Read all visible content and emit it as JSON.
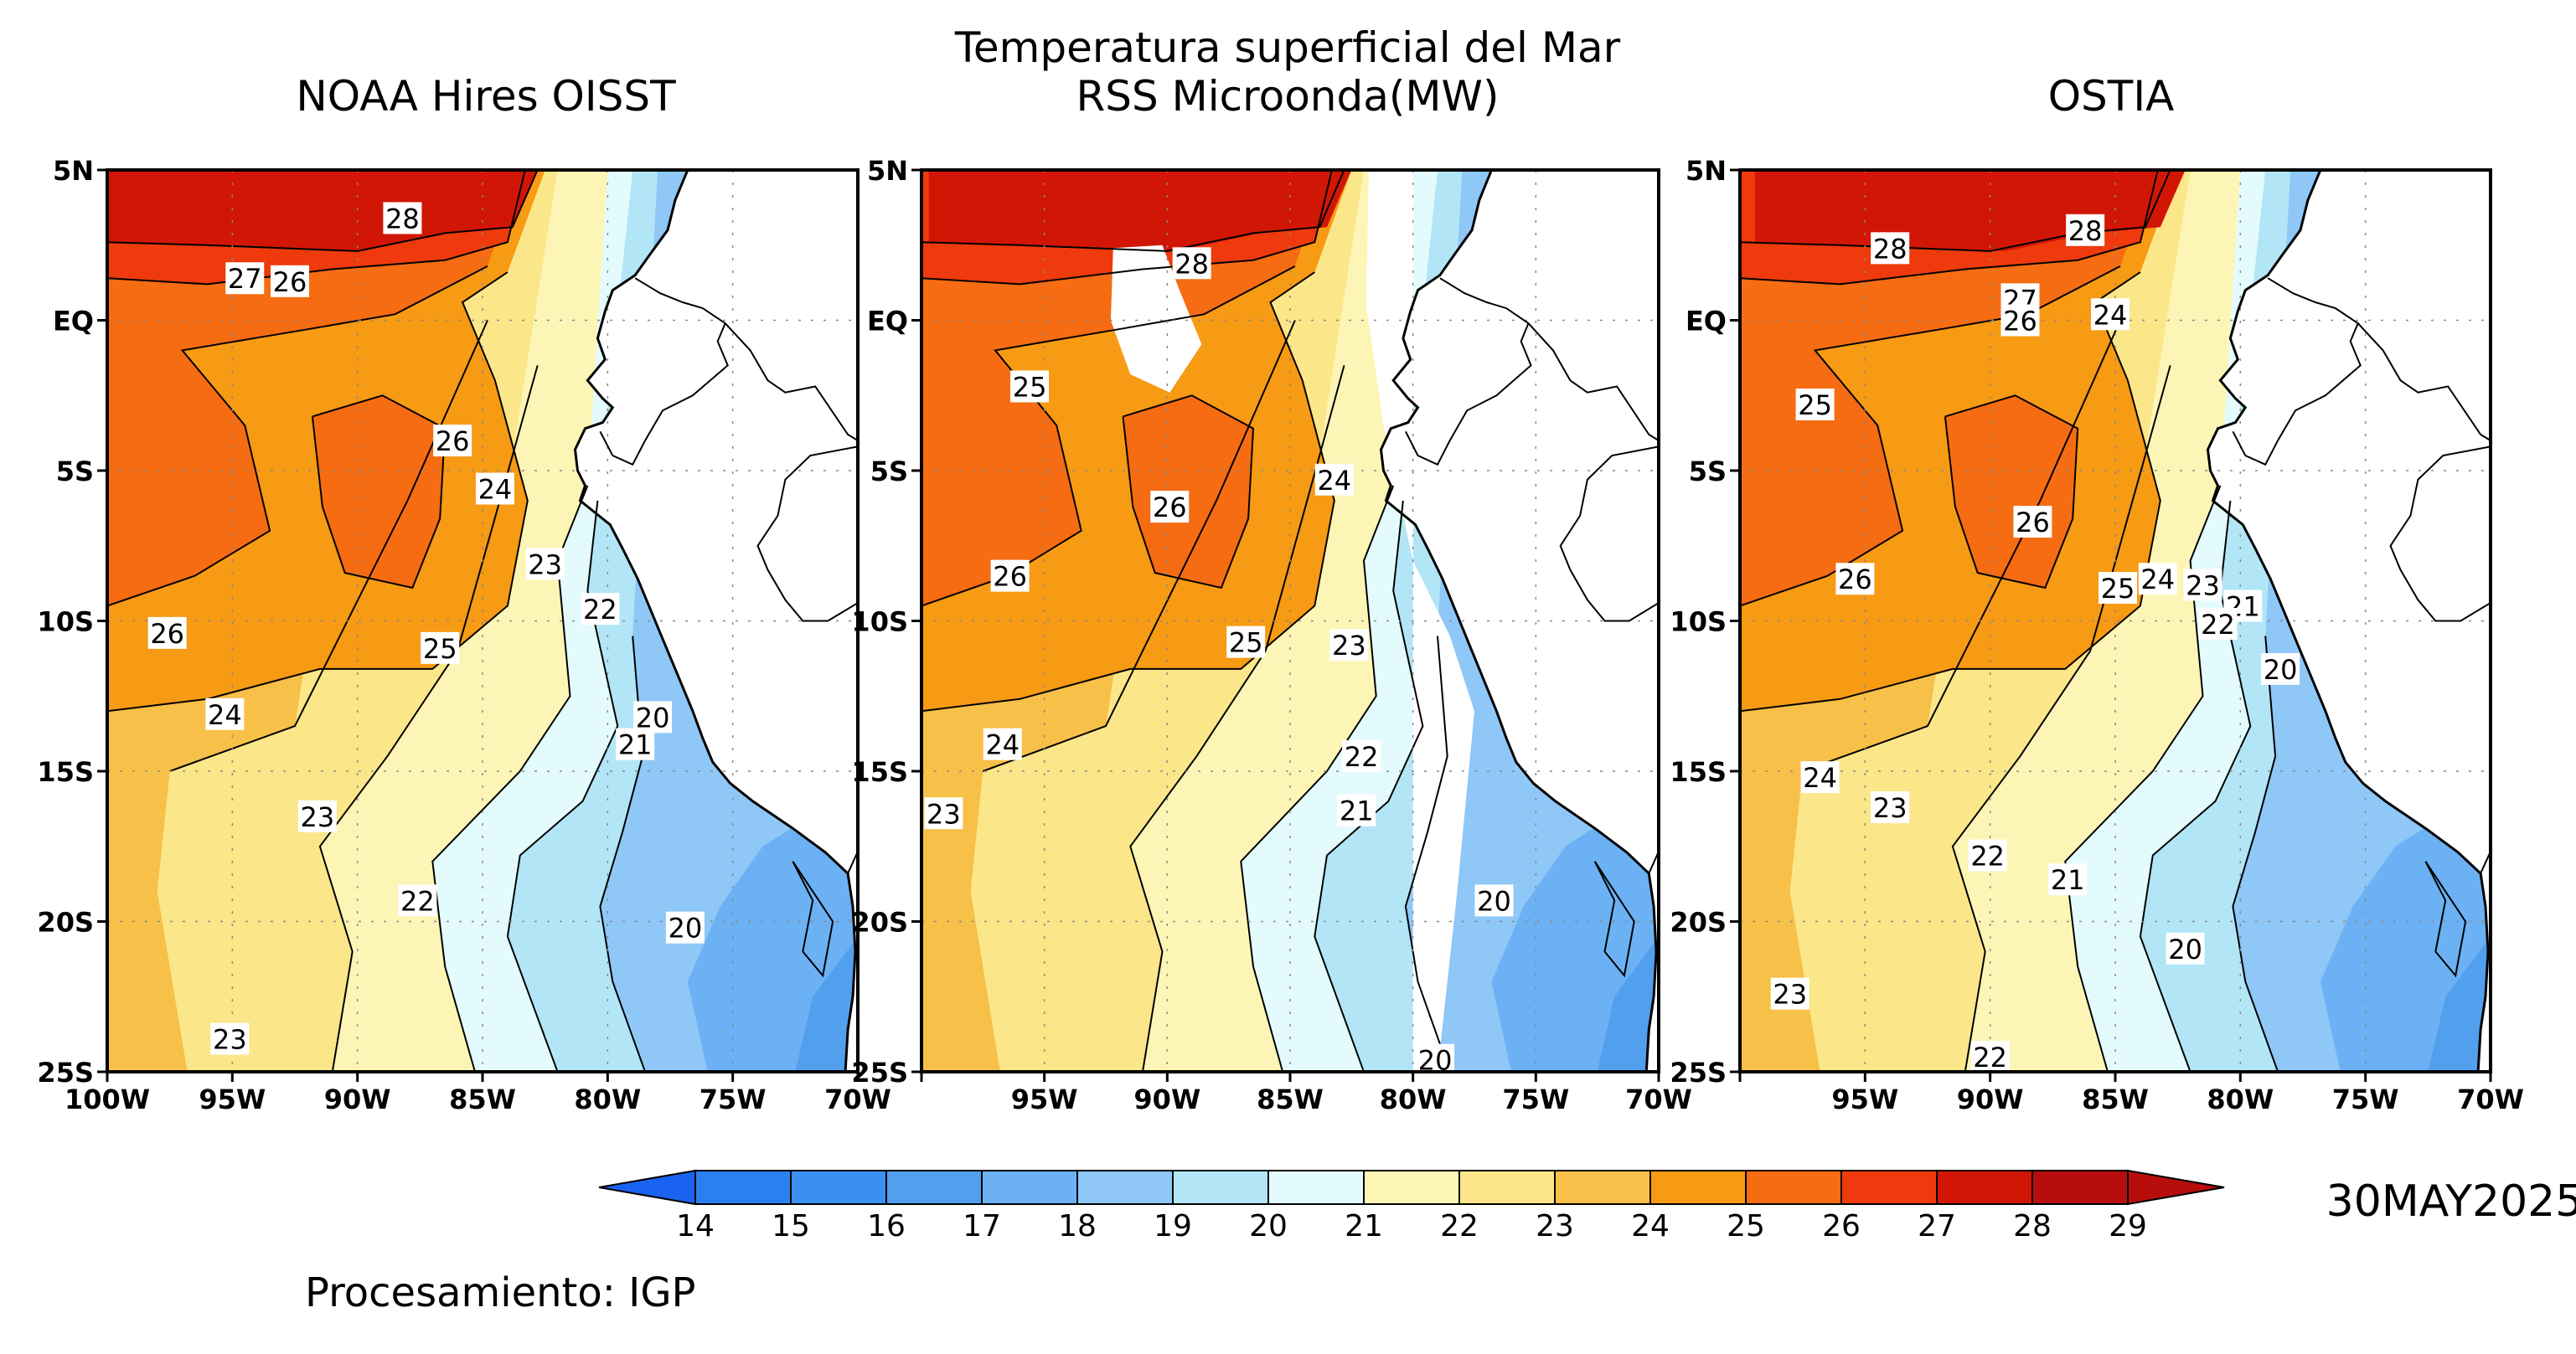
{
  "figure": {
    "title_line1": "Temperatura superficial del Mar",
    "date": "30MAY2025",
    "credit": "Procesamiento: IGP"
  },
  "panels": [
    {
      "id": "oisst",
      "title": "NOAA Hires OISST",
      "labels": [
        {
          "text": "28",
          "lon": -88.2,
          "lat": 3.4
        },
        {
          "text": "27",
          "lon": -94.5,
          "lat": 1.4
        },
        {
          "text": "26",
          "lon": -92.7,
          "lat": 1.3
        },
        {
          "text": "26",
          "lon": -86.2,
          "lat": -4.0
        },
        {
          "text": "24",
          "lon": -84.5,
          "lat": -5.6
        },
        {
          "text": "23",
          "lon": -82.5,
          "lat": -8.1
        },
        {
          "text": "22",
          "lon": -80.3,
          "lat": -9.6
        },
        {
          "text": "26",
          "lon": -97.6,
          "lat": -10.4
        },
        {
          "text": "25",
          "lon": -86.7,
          "lat": -10.9
        },
        {
          "text": "24",
          "lon": -95.3,
          "lat": -13.1
        },
        {
          "text": "20",
          "lon": -78.2,
          "lat": -13.2
        },
        {
          "text": "21",
          "lon": -78.9,
          "lat": -14.1
        },
        {
          "text": "23",
          "lon": -91.6,
          "lat": -16.5
        },
        {
          "text": "22",
          "lon": -87.6,
          "lat": -19.3
        },
        {
          "text": "20",
          "lon": -76.9,
          "lat": -20.2
        },
        {
          "text": "23",
          "lon": -95.1,
          "lat": -23.9
        }
      ]
    },
    {
      "id": "rss",
      "title": "RSS Microonda(MW)",
      "labels": [
        {
          "text": "28",
          "lon": -89.0,
          "lat": 1.9
        },
        {
          "text": "25",
          "lon": -95.6,
          "lat": -2.2
        },
        {
          "text": "24",
          "lon": -83.2,
          "lat": -5.3
        },
        {
          "text": "26",
          "lon": -89.9,
          "lat": -6.2
        },
        {
          "text": "26",
          "lon": -96.4,
          "lat": -8.5
        },
        {
          "text": "25",
          "lon": -86.8,
          "lat": -10.7
        },
        {
          "text": "23",
          "lon": -82.6,
          "lat": -10.8
        },
        {
          "text": "24",
          "lon": -96.7,
          "lat": -14.1
        },
        {
          "text": "22",
          "lon": -82.1,
          "lat": -14.5
        },
        {
          "text": "23",
          "lon": -99.1,
          "lat": -16.4
        },
        {
          "text": "21",
          "lon": -82.3,
          "lat": -16.3
        },
        {
          "text": "20",
          "lon": -76.7,
          "lat": -19.3
        },
        {
          "text": "20",
          "lon": -79.1,
          "lat": -24.6
        }
      ]
    },
    {
      "id": "ostia",
      "title": "OSTIA",
      "labels": [
        {
          "text": "28",
          "lon": -94.0,
          "lat": 2.4
        },
        {
          "text": "28",
          "lon": -86.2,
          "lat": 3.0
        },
        {
          "text": "27",
          "lon": -88.8,
          "lat": 0.7
        },
        {
          "text": "26",
          "lon": -88.8,
          "lat": 0.0
        },
        {
          "text": "24",
          "lon": -85.2,
          "lat": 0.2
        },
        {
          "text": "25",
          "lon": -97.0,
          "lat": -2.8
        },
        {
          "text": "26",
          "lon": -88.3,
          "lat": -6.7
        },
        {
          "text": "26",
          "lon": -95.4,
          "lat": -8.6
        },
        {
          "text": "25",
          "lon": -84.9,
          "lat": -8.9
        },
        {
          "text": "24",
          "lon": -83.3,
          "lat": -8.6
        },
        {
          "text": "23",
          "lon": -81.5,
          "lat": -8.8
        },
        {
          "text": "21",
          "lon": -79.9,
          "lat": -9.5
        },
        {
          "text": "22",
          "lon": -80.9,
          "lat": -10.1
        },
        {
          "text": "20",
          "lon": -78.4,
          "lat": -11.6
        },
        {
          "text": "24",
          "lon": -96.8,
          "lat": -15.2
        },
        {
          "text": "23",
          "lon": -94.0,
          "lat": -16.2
        },
        {
          "text": "22",
          "lon": -90.1,
          "lat": -17.8
        },
        {
          "text": "21",
          "lon": -86.9,
          "lat": -18.6
        },
        {
          "text": "20",
          "lon": -82.2,
          "lat": -20.9
        },
        {
          "text": "23",
          "lon": -98.0,
          "lat": -22.4
        },
        {
          "text": "22",
          "lon": -90.0,
          "lat": -24.5
        }
      ]
    }
  ],
  "axes": {
    "lon_range": [
      -100,
      -70
    ],
    "lat_range": [
      -25,
      5
    ],
    "lon_ticks": [
      {
        "value": -100,
        "label": "100W"
      },
      {
        "value": -95,
        "label": "95W"
      },
      {
        "value": -90,
        "label": "90W"
      },
      {
        "value": -85,
        "label": "85W"
      },
      {
        "value": -80,
        "label": "80W"
      },
      {
        "value": -75,
        "label": "75W"
      },
      {
        "value": -70,
        "label": "70W"
      }
    ],
    "lat_ticks": [
      {
        "value": 5,
        "label": "5N"
      },
      {
        "value": 0,
        "label": "EQ"
      },
      {
        "value": -5,
        "label": "5S"
      },
      {
        "value": -10,
        "label": "10S"
      },
      {
        "value": -15,
        "label": "15S"
      },
      {
        "value": -20,
        "label": "20S"
      },
      {
        "value": -25,
        "label": "25S"
      }
    ],
    "grid": true
  },
  "colorbar": {
    "levels": [
      "14",
      "15",
      "16",
      "17",
      "18",
      "19",
      "20",
      "21",
      "22",
      "23",
      "24",
      "25",
      "26",
      "27",
      "28",
      "29"
    ],
    "colors": [
      "#1a6ef0",
      "#2a80ee",
      "#3a8ff0",
      "#529fee",
      "#6cb1f3",
      "#8fc7f7",
      "#b2e6f7",
      "#e4fbfd",
      "#fdf5b5",
      "#fbe68a",
      "#f7c048",
      "#f79a14",
      "#f66c12",
      "#ee3a0c",
      "#d21606",
      "#b80d0d"
    ],
    "under_color": "#1a62f0",
    "over_color": "#b80d0d"
  },
  "map_colors": {
    "land": "#ffffff",
    "missing": "#ffffff",
    "coast": "#000000"
  }
}
